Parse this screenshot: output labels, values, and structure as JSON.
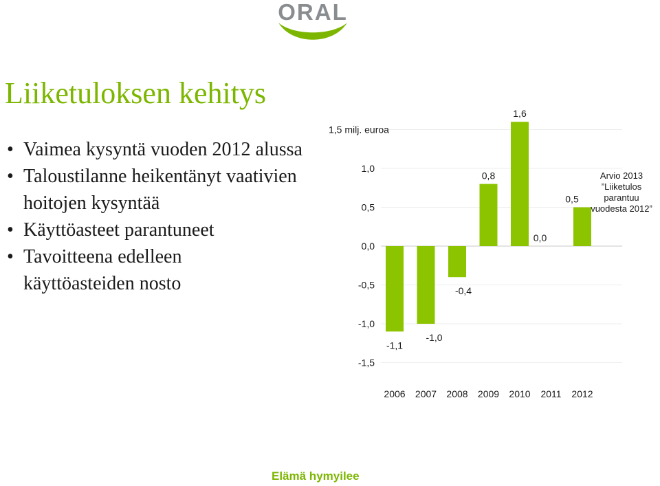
{
  "logo": {
    "text": "ORAL",
    "colors": {
      "text": "#8a8d90",
      "swoosh": "#7cb600"
    }
  },
  "title": "Liiketuloksen kehitys",
  "bullets": [
    {
      "lines": [
        "Vaimea kysyntä vuoden 2012 alussa"
      ]
    },
    {
      "lines": [
        "Taloustilanne heikentänyt vaativien",
        "hoitojen kysyntää"
      ]
    },
    {
      "lines": [
        "Käyttöasteet parantuneet"
      ]
    },
    {
      "lines": [
        "Tavoitteena edelleen",
        "käyttöasteiden nosto"
      ]
    }
  ],
  "chart_data": {
    "type": "bar",
    "categories": [
      "2006",
      "2007",
      "2008",
      "2009",
      "2010",
      "2011",
      "2012"
    ],
    "values": [
      -1.1,
      -1.0,
      -0.4,
      0.8,
      1.6,
      0.0,
      0.5
    ],
    "data_labels": [
      "-1,1",
      "-1,0",
      "-0,4",
      "0,8",
      "1,6",
      "0,0",
      "0,5"
    ],
    "yticks": [
      -1.5,
      -1.0,
      -0.5,
      0.0,
      0.5,
      1.0,
      1.5
    ],
    "ytick_labels": [
      "-1,5",
      "-1,0",
      "-0,5",
      "0,0",
      "0,5",
      "1,0",
      "1,5 milj. euroa"
    ],
    "ylim": [
      -1.5,
      1.5
    ],
    "grid": true,
    "bar_color": "#8dc400",
    "annotation": [
      "Arvio 2013",
      "”Liiketulos",
      "parantuu",
      "vuodesta 2012”"
    ]
  },
  "footer": "Elämä hymyilee"
}
